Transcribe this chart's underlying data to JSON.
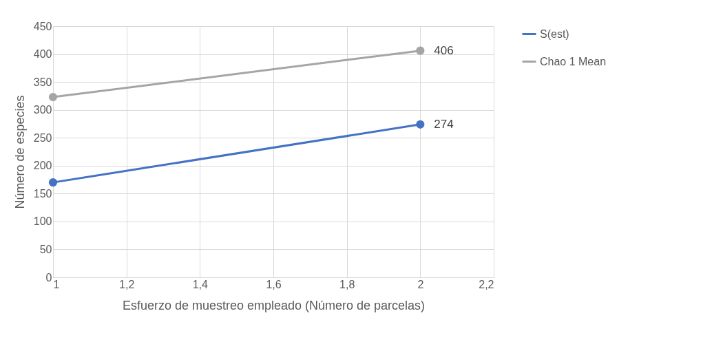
{
  "chart_data": {
    "type": "line",
    "xlabel": "Esfuerzo de muestreo empleado (Número de parcelas)",
    "ylabel": "Número de especies",
    "x": [
      1,
      2
    ],
    "series": [
      {
        "name": "S(est)",
        "color": "#4472c4",
        "values": [
          170,
          274
        ],
        "value_labels": [
          null,
          "274"
        ]
      },
      {
        "name": "Chao 1 Mean",
        "color": "#a5a5a5",
        "values": [
          323,
          406
        ],
        "value_labels": [
          null,
          "406"
        ]
      }
    ],
    "xlim": [
      1,
      2.2
    ],
    "xticks": [
      1,
      {
        "value": 1.2,
        "label": "1,2"
      },
      {
        "value": 1.4,
        "label": "1,4"
      },
      {
        "value": 1.6,
        "label": "1,6"
      },
      {
        "value": 1.8,
        "label": "1,8"
      },
      2,
      {
        "value": 2.2,
        "label": "2,2"
      }
    ],
    "ylim": [
      0,
      450
    ],
    "yticks": [
      0,
      50,
      100,
      150,
      200,
      250,
      300,
      350,
      400,
      450
    ],
    "grid": true,
    "legend": "right",
    "marker": "circle",
    "line_style": "solid"
  }
}
